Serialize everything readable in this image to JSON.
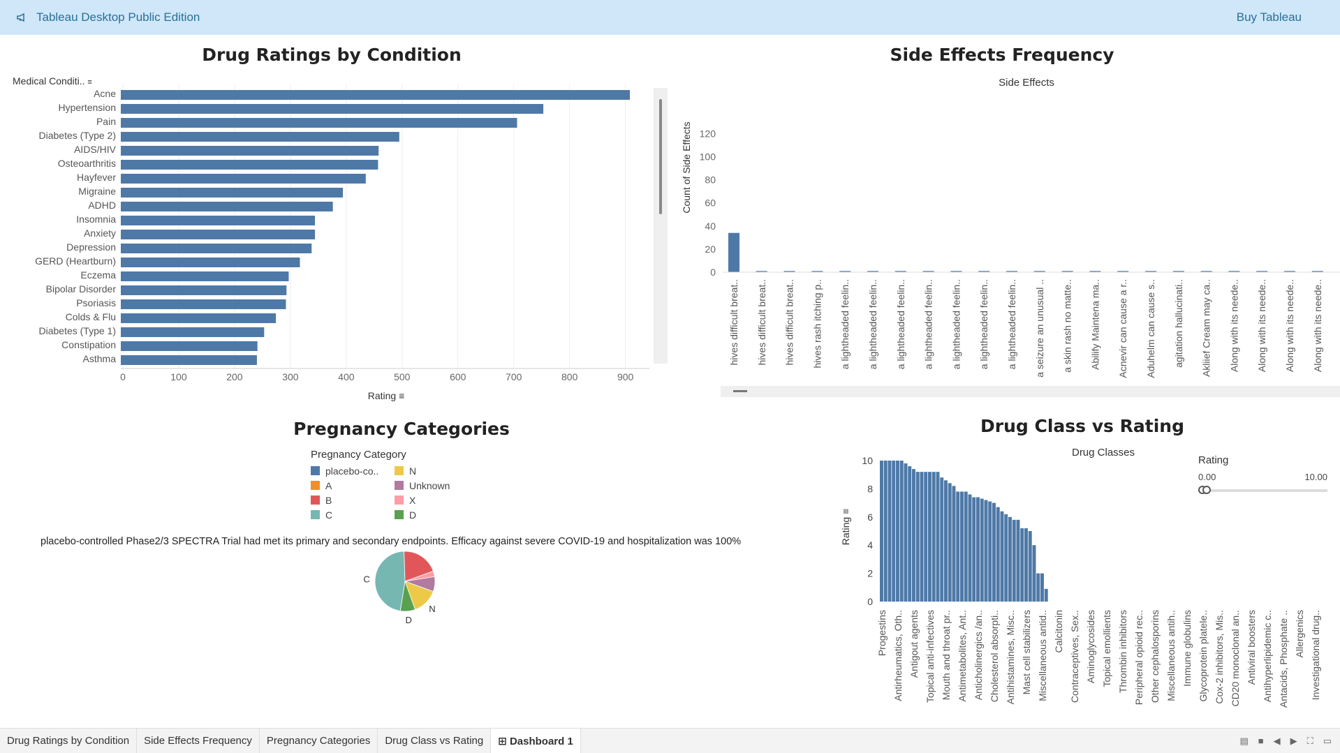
{
  "topbar": {
    "brand": "Tableau Desktop Public Edition",
    "buy": "Buy Tableau"
  },
  "sheets": {
    "s1": {
      "title": "Drug Ratings by Condition",
      "field": "Medical Conditi..",
      "axis_title": "Rating"
    },
    "s2": {
      "title": "Side Effects Frequency",
      "subtitle": "Side Effects",
      "axis_title": "Count of Side Effects"
    },
    "s3": {
      "title": "Pregnancy Categories",
      "legend_title": "Pregnancy Category",
      "annotation": "placebo-controlled Phase2/3 SPECTRA Trial had met its primary and secondary endpoints. Efficacy against severe COVID-19 and hospitalization was 100%"
    },
    "s4": {
      "title": "Drug Class vs Rating",
      "subtitle": "Drug Classes",
      "axis_title": "Rating",
      "filter": {
        "title": "Rating",
        "min_label": "0.00",
        "max_label": "10.00",
        "min": 0.0,
        "max": 10.0
      }
    }
  },
  "legend_items": [
    {
      "label": "placebo-co..",
      "color": "#4e79a7"
    },
    {
      "label": "N",
      "color": "#edc948"
    },
    {
      "label": "A",
      "color": "#f28e2b"
    },
    {
      "label": "Unknown",
      "color": "#b07aa1"
    },
    {
      "label": "B",
      "color": "#e15759"
    },
    {
      "label": "X",
      "color": "#ff9da7"
    },
    {
      "label": "C",
      "color": "#76b7b2"
    },
    {
      "label": "D",
      "color": "#59a14f"
    }
  ],
  "tabs": [
    {
      "label": "Drug Ratings by Condition",
      "active": false
    },
    {
      "label": "Side Effects Frequency",
      "active": false
    },
    {
      "label": "Pregnancy Categories",
      "active": false
    },
    {
      "label": "Drug Class vs Rating",
      "active": false
    },
    {
      "label": "⊞ Dashboard 1",
      "active": true
    }
  ],
  "chart_data": [
    {
      "type": "bar",
      "orientation": "horizontal",
      "title": "Drug Ratings by Condition",
      "ylabel": "Medical Conditi..",
      "xlabel": "Rating",
      "xlim": [
        0,
        960
      ],
      "xticks": [
        0,
        100,
        200,
        300,
        400,
        500,
        600,
        700,
        800,
        900
      ],
      "color": "#4e79a7",
      "categories": [
        "Acne",
        "Hypertension",
        "Pain",
        "Diabetes (Type 2)",
        "AIDS/HIV",
        "Osteoarthritis",
        "Hayfever",
        "Migraine",
        "ADHD",
        "Insomnia",
        "Anxiety",
        "Depression",
        "GERD (Heartburn)",
        "Eczema",
        "Bipolar Disorder",
        "Psoriasis",
        "Colds & Flu",
        "Diabetes (Type 1)",
        "Constipation",
        "Asthma"
      ],
      "values": [
        908,
        753,
        706,
        495,
        458,
        457,
        435,
        394,
        376,
        344,
        344,
        338,
        317,
        297,
        293,
        292,
        274,
        253,
        241,
        240
      ]
    },
    {
      "type": "bar",
      "title": "Side Effects Frequency",
      "subtitle": "Side Effects",
      "ylabel": "Count of Side Effects",
      "ylim": [
        0,
        130
      ],
      "yticks": [
        0,
        20,
        40,
        60,
        80,
        100,
        120
      ],
      "color": "#4e79a7",
      "categories": [
        "hives  difficult breat..",
        "hives  difficult breat..",
        "hives  difficult breat..",
        "hives  rash itching p..",
        "a lightheaded feelin..",
        "a lightheaded feelin..",
        "a lightheaded feelin..",
        "a lightheaded feelin..",
        "a lightheaded feelin..",
        "a lightheaded feelin..",
        "a lightheaded feelin..",
        "a seizure an unusual ..",
        "a skin rash no matte..",
        "Abilify Maintena ma..",
        "Acnevir can cause a r..",
        "Aduhelm can cause s..",
        "agitation  hallucinati..",
        "Akliief Cream may ca..",
        "Along with its neede..",
        "Along with its neede..",
        "Along with its neede..",
        "Along with its neede.."
      ],
      "values": [
        34,
        1,
        1,
        1,
        1,
        1,
        1,
        1,
        1,
        1,
        1,
        1,
        1,
        1,
        1,
        1,
        1,
        1,
        1,
        1,
        1,
        1
      ]
    },
    {
      "type": "pie",
      "title": "Pregnancy Categories",
      "categories": [
        "C",
        "B",
        "X",
        "Unknown",
        "N",
        "D"
      ],
      "values": [
        47,
        20,
        3,
        8,
        14,
        8
      ],
      "colors": [
        "#76b7b2",
        "#e15759",
        "#ff9da7",
        "#b07aa1",
        "#edc948",
        "#59a14f"
      ],
      "labels_shown": [
        "N",
        "D",
        "C"
      ]
    },
    {
      "type": "bar",
      "title": "Drug Class vs Rating",
      "subtitle": "Drug Classes",
      "ylabel": "Rating",
      "ylim": [
        0,
        10
      ],
      "yticks": [
        0,
        2,
        4,
        6,
        8,
        10
      ],
      "color": "#4e79a7",
      "values": [
        10,
        10,
        10,
        10,
        10,
        10,
        9.8,
        9.6,
        9.4,
        9.2,
        9.2,
        9.2,
        9.2,
        9.2,
        9.2,
        8.8,
        8.6,
        8.4,
        8.2,
        7.8,
        7.8,
        7.8,
        7.6,
        7.4,
        7.4,
        7.3,
        7.2,
        7.1,
        7.0,
        6.7,
        6.4,
        6.2,
        6.0,
        5.8,
        5.8,
        5.2,
        5.2,
        5.0,
        4.0,
        2.0,
        2.0,
        0.9,
        0,
        0,
        0,
        0,
        0,
        0,
        0,
        0,
        0,
        0,
        0,
        0,
        0,
        0,
        0,
        0,
        0,
        0,
        0,
        0,
        0,
        0,
        0,
        0,
        0,
        0,
        0,
        0,
        0,
        0,
        0,
        0
      ],
      "labels_shown": [
        "Progestins",
        "Antirheumatics, Oth..",
        "Antigout agents",
        "Topical anti-infectives",
        "Mouth and throat pr..",
        "Antimetabolites, Ant..",
        "Anticholinergics /an..",
        "Cholesterol absorpti..",
        "Antihistamines, Misc..",
        "Mast cell stabilizers",
        "Miscellaneous antid..",
        "Calcitonin",
        "Contraceptives, Sex..",
        "Aminoglycosides",
        "Topical emollients",
        "Thrombin inhibitors",
        "Peripheral opioid rec..",
        "Other cephalosporins",
        "Miscellaneous antih..",
        "Immune globulins",
        "Glycoprotein platele..",
        "Cox-2 inhibitors, Mis..",
        "CD20 monoclonal an..",
        "Antiviral boosters",
        "Antihyperlipidemic c..",
        "Antacids, Phosphate ..",
        "Allergenics",
        "Investigational drug.."
      ]
    }
  ]
}
